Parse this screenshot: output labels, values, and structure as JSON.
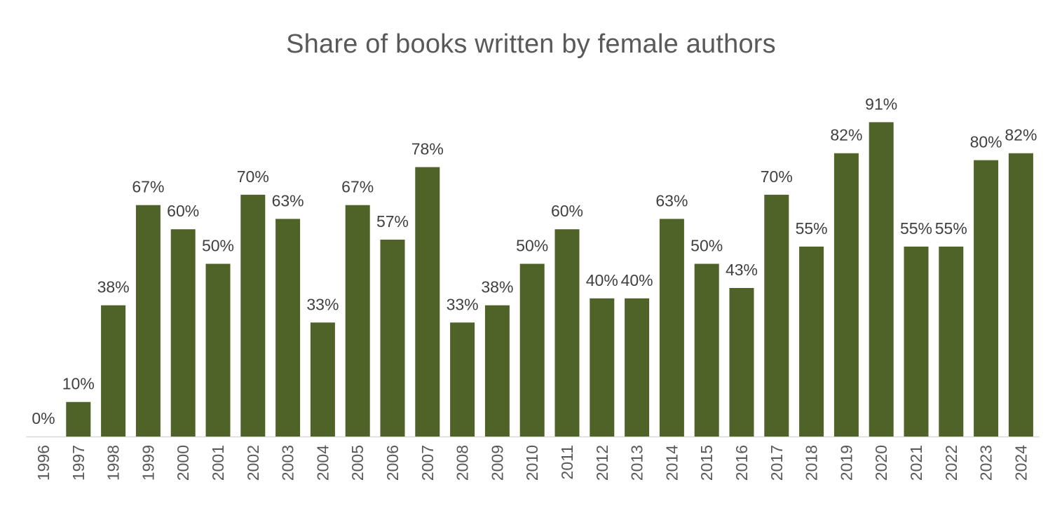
{
  "chart_data": {
    "type": "bar",
    "title": "Share of books written by female authors",
    "xlabel": "",
    "ylabel": "",
    "ylim": [
      0,
      100
    ],
    "grid": false,
    "legend": "none",
    "bar_color": "#4f6228",
    "categories": [
      "1996",
      "1997",
      "1998",
      "1999",
      "2000",
      "2001",
      "2002",
      "2003",
      "2004",
      "2005",
      "2006",
      "2007",
      "2008",
      "2009",
      "2010",
      "2011",
      "2012",
      "2013",
      "2014",
      "2015",
      "2016",
      "2017",
      "2018",
      "2019",
      "2020",
      "2021",
      "2022",
      "2023",
      "2024"
    ],
    "values": [
      0,
      10,
      38,
      67,
      60,
      50,
      70,
      63,
      33,
      67,
      57,
      78,
      33,
      38,
      50,
      60,
      40,
      40,
      63,
      50,
      43,
      70,
      55,
      82,
      91,
      55,
      55,
      80,
      82
    ],
    "data_labels": [
      "0%",
      "10%",
      "38%",
      "67%",
      "60%",
      "50%",
      "70%",
      "63%",
      "33%",
      "67%",
      "57%",
      "78%",
      "33%",
      "38%",
      "50%",
      "60%",
      "40%",
      "40%",
      "63%",
      "50%",
      "43%",
      "70%",
      "55%",
      "82%",
      "91%",
      "55%",
      "55%",
      "80%",
      "82%"
    ]
  }
}
